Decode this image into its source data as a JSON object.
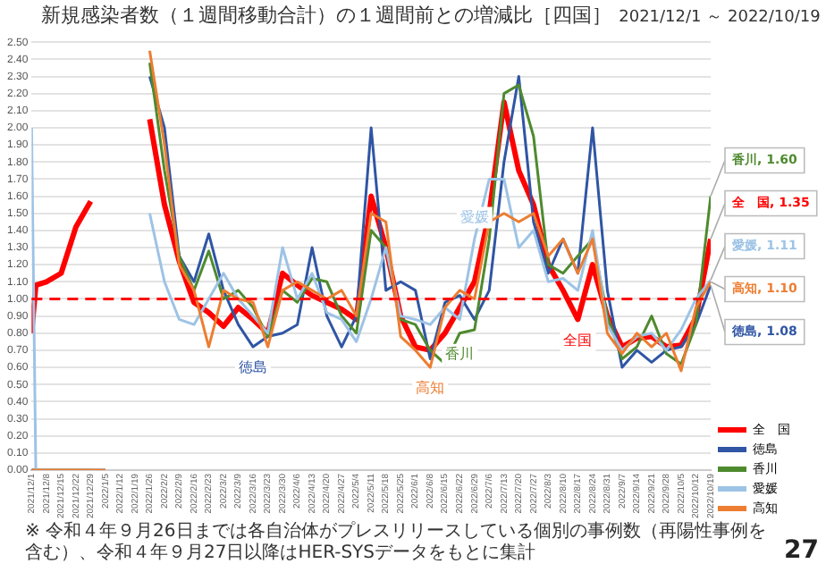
{
  "chart_data": {
    "type": "line",
    "title": "新規感染者数（１週間移動合計）の１週間前との増減比［四国］",
    "subtitle": "2021/12/1 ～ 2022/10/19",
    "x": [
      "2021-12-01",
      "2021-12-03",
      "2021-12-08",
      "2021-12-15",
      "2021-12-22",
      "2021-12-29",
      "2022-01-05",
      "2022-01-12",
      "2022-01-19",
      "2022-01-26",
      "2022-02-02",
      "2022-02-09",
      "2022-02-16",
      "2022-02-23",
      "2022-03-02",
      "2022-03-09",
      "2022-03-16",
      "2022-03-23",
      "2022-03-30",
      "2022-04-06",
      "2022-04-13",
      "2022-04-20",
      "2022-04-27",
      "2022-05-04",
      "2022-05-11",
      "2022-05-18",
      "2022-05-25",
      "2022-06-01",
      "2022-06-08",
      "2022-06-15",
      "2022-06-22",
      "2022-06-29",
      "2022-07-06",
      "2022-07-13",
      "2022-07-20",
      "2022-07-27",
      "2022-08-03",
      "2022-08-10",
      "2022-08-17",
      "2022-08-24",
      "2022-08-31",
      "2022-09-07",
      "2022-09-14",
      "2022-09-21",
      "2022-09-28",
      "2022-10-05",
      "2022-10-12",
      "2022-10-19"
    ],
    "xlim": [
      "2021-12-01",
      "2022-10-19"
    ],
    "xticks": [
      {
        "value": "2021-12-01",
        "label": "2021/12/1"
      },
      {
        "value": "2021-12-08",
        "label": "2021/12/8"
      },
      {
        "value": "2021-12-15",
        "label": "2021/12/15"
      },
      {
        "value": "2021-12-22",
        "label": "2021/12/22"
      },
      {
        "value": "2021-12-29",
        "label": "2021/12/29"
      },
      {
        "value": "2022-01-05",
        "label": "2022/1/5"
      },
      {
        "value": "2022-01-12",
        "label": "2022/1/12"
      },
      {
        "value": "2022-01-19",
        "label": "2022/1/19"
      },
      {
        "value": "2022-01-26",
        "label": "2022/1/26"
      },
      {
        "value": "2022-02-02",
        "label": "2022/2/2"
      },
      {
        "value": "2022-02-09",
        "label": "2022/2/9"
      },
      {
        "value": "2022-02-16",
        "label": "2022/2/16"
      },
      {
        "value": "2022-02-23",
        "label": "2022/2/23"
      },
      {
        "value": "2022-03-02",
        "label": "2022/3/2"
      },
      {
        "value": "2022-03-09",
        "label": "2022/3/9"
      },
      {
        "value": "2022-03-16",
        "label": "2022/3/16"
      },
      {
        "value": "2022-03-23",
        "label": "2022/3/23"
      },
      {
        "value": "2022-03-30",
        "label": "2022/3/30"
      },
      {
        "value": "2022-04-06",
        "label": "2022/4/6"
      },
      {
        "value": "2022-04-13",
        "label": "2022/4/13"
      },
      {
        "value": "2022-04-20",
        "label": "2022/4/20"
      },
      {
        "value": "2022-04-27",
        "label": "2022/4/27"
      },
      {
        "value": "2022-05-04",
        "label": "2022/5/4"
      },
      {
        "value": "2022-05-11",
        "label": "2022/5/11"
      },
      {
        "value": "2022-05-18",
        "label": "2022/5/18"
      },
      {
        "value": "2022-05-25",
        "label": "2022/5/25"
      },
      {
        "value": "2022-06-01",
        "label": "2022/6/1"
      },
      {
        "value": "2022-06-08",
        "label": "2022/6/8"
      },
      {
        "value": "2022-06-15",
        "label": "2022/6/15"
      },
      {
        "value": "2022-06-22",
        "label": "2022/6/22"
      },
      {
        "value": "2022-06-29",
        "label": "2022/6/29"
      },
      {
        "value": "2022-07-06",
        "label": "2022/7/6"
      },
      {
        "value": "2022-07-13",
        "label": "2022/7/13"
      },
      {
        "value": "2022-07-20",
        "label": "2022/7/20"
      },
      {
        "value": "2022-07-27",
        "label": "2022/7/27"
      },
      {
        "value": "2022-08-03",
        "label": "2022/8/3"
      },
      {
        "value": "2022-08-10",
        "label": "2022/8/10"
      },
      {
        "value": "2022-08-17",
        "label": "2022/8/17"
      },
      {
        "value": "2022-08-24",
        "label": "2022/8/24"
      },
      {
        "value": "2022-08-31",
        "label": "2022/8/31"
      },
      {
        "value": "2022-09-07",
        "label": "2022/9/7"
      },
      {
        "value": "2022-09-14",
        "label": "2022/9/14"
      },
      {
        "value": "2022-09-21",
        "label": "2022/9/21"
      },
      {
        "value": "2022-09-28",
        "label": "2022/9/28"
      },
      {
        "value": "2022-10-05",
        "label": "2022/10/5"
      },
      {
        "value": "2022-10-12",
        "label": "2022/10/12"
      },
      {
        "value": "2022-10-19",
        "label": "2022/10/19"
      }
    ],
    "ylim": [
      0,
      2.5
    ],
    "yticks": [
      {
        "value": 0,
        "label": "0.00"
      },
      {
        "value": 0.1,
        "label": "0.10"
      },
      {
        "value": 0.2,
        "label": "0.20"
      },
      {
        "value": 0.3,
        "label": "0.30"
      },
      {
        "value": 0.4,
        "label": "0.40"
      },
      {
        "value": 0.5,
        "label": "0.50"
      },
      {
        "value": 0.6,
        "label": "0.60"
      },
      {
        "value": 0.7,
        "label": "0.70"
      },
      {
        "value": 0.8,
        "label": "0.80"
      },
      {
        "value": 0.9,
        "label": "0.90"
      },
      {
        "value": 1,
        "label": "1.00"
      },
      {
        "value": 1.1,
        "label": "1.10"
      },
      {
        "value": 1.2,
        "label": "1.20"
      },
      {
        "value": 1.3,
        "label": "1.30"
      },
      {
        "value": 1.4,
        "label": "1.40"
      },
      {
        "value": 1.5,
        "label": "1.50"
      },
      {
        "value": 1.6,
        "label": "1.60"
      },
      {
        "value": 1.7,
        "label": "1.70"
      },
      {
        "value": 1.8,
        "label": "1.80"
      },
      {
        "value": 1.9,
        "label": "1.90"
      },
      {
        "value": 2,
        "label": "2.00"
      },
      {
        "value": 2.1,
        "label": "2.10"
      },
      {
        "value": 2.2,
        "label": "2.20"
      },
      {
        "value": 2.3,
        "label": "2.30"
      },
      {
        "value": 2.4,
        "label": "2.40"
      },
      {
        "value": 2.5,
        "label": "2.50"
      }
    ],
    "grid": "y",
    "legend": "bottom right",
    "ref_lines": [
      {
        "axis": "y",
        "value": 1,
        "color": "#ff0000",
        "line_style": "dashed"
      }
    ],
    "series": [
      {
        "name": "全　国",
        "color": "#ff0000",
        "values": [
          0.8,
          1.08,
          1.1,
          1.15,
          1.42,
          1.57,
          null,
          null,
          null,
          2.05,
          1.55,
          1.22,
          0.98,
          0.92,
          0.84,
          0.95,
          0.88,
          0.8,
          1.15,
          1.08,
          1.02,
          0.98,
          0.94,
          0.88,
          1.6,
          1.3,
          0.9,
          0.72,
          0.7,
          0.8,
          0.95,
          1.1,
          1.5,
          2.15,
          1.75,
          1.55,
          1.2,
          1.05,
          0.88,
          1.2,
          0.9,
          0.72,
          0.77,
          0.78,
          0.72,
          0.73,
          0.89,
          1.35
        ],
        "value_labels": [
          null,
          null,
          null,
          null,
          null,
          null,
          null,
          null,
          null,
          null,
          null,
          null,
          null,
          null,
          null,
          null,
          null,
          null,
          null,
          null,
          null,
          null,
          null,
          null,
          null,
          null,
          null,
          null,
          null,
          null,
          null,
          null,
          null,
          null,
          null,
          null,
          null,
          null,
          null,
          null,
          null,
          null,
          null,
          null,
          null,
          null,
          null,
          "全　国, 1.35"
        ]
      },
      {
        "name": "徳島",
        "color": "#2f55a4",
        "values": [
          0,
          0,
          0,
          0,
          0,
          0,
          0,
          null,
          null,
          2.3,
          2.0,
          1.25,
          1.1,
          1.38,
          1.05,
          0.85,
          0.72,
          0.78,
          0.8,
          0.85,
          1.3,
          0.9,
          0.72,
          0.9,
          2.0,
          1.05,
          1.1,
          1.05,
          0.65,
          0.98,
          1.02,
          0.88,
          1.05,
          1.8,
          2.3,
          1.45,
          1.15,
          1.35,
          1.15,
          2.0,
          1.05,
          0.6,
          0.7,
          0.63,
          0.7,
          0.72,
          0.85,
          1.08
        ],
        "value_labels": [
          null,
          null,
          null,
          null,
          null,
          null,
          null,
          null,
          null,
          null,
          null,
          null,
          null,
          null,
          null,
          null,
          null,
          null,
          null,
          null,
          null,
          null,
          null,
          null,
          null,
          null,
          null,
          null,
          null,
          null,
          null,
          null,
          null,
          null,
          null,
          null,
          null,
          null,
          null,
          null,
          null,
          null,
          null,
          null,
          null,
          null,
          null,
          "徳島, 1.08"
        ]
      },
      {
        "name": "香川",
        "color": "#4e8a2e",
        "values": [
          0,
          0,
          0,
          0,
          0,
          0,
          null,
          null,
          null,
          2.38,
          1.75,
          1.25,
          1.05,
          1.28,
          1.0,
          1.05,
          0.95,
          0.78,
          1.05,
          0.98,
          1.12,
          1.1,
          0.9,
          0.8,
          1.4,
          1.3,
          0.88,
          0.85,
          0.7,
          0.62,
          0.8,
          0.82,
          1.35,
          2.2,
          2.25,
          1.95,
          1.2,
          1.15,
          1.25,
          1.35,
          0.9,
          0.65,
          0.72,
          0.9,
          0.68,
          0.62,
          0.85,
          1.6
        ],
        "value_labels": [
          null,
          null,
          null,
          null,
          null,
          null,
          null,
          null,
          null,
          null,
          null,
          null,
          null,
          null,
          null,
          null,
          null,
          null,
          null,
          null,
          null,
          null,
          null,
          null,
          null,
          null,
          null,
          null,
          null,
          null,
          null,
          null,
          null,
          null,
          null,
          null,
          null,
          null,
          null,
          null,
          null,
          null,
          null,
          null,
          null,
          null,
          null,
          "香川, 1.60"
        ]
      },
      {
        "name": "愛媛",
        "color": "#9dc3e6",
        "values": [
          2.0,
          0,
          0,
          0,
          0,
          0,
          0,
          null,
          null,
          1.5,
          1.1,
          0.88,
          0.85,
          1.0,
          1.15,
          1.0,
          0.9,
          0.8,
          1.3,
          1.0,
          1.15,
          0.92,
          0.88,
          0.75,
          1.0,
          1.3,
          0.9,
          0.88,
          0.85,
          0.95,
          0.88,
          1.35,
          1.7,
          1.7,
          1.3,
          1.4,
          1.1,
          1.12,
          1.05,
          1.4,
          0.85,
          0.7,
          0.78,
          0.8,
          0.7,
          0.82,
          1.0,
          1.11
        ],
        "value_labels": [
          null,
          null,
          null,
          null,
          null,
          null,
          null,
          null,
          null,
          null,
          null,
          null,
          null,
          null,
          null,
          null,
          null,
          null,
          null,
          null,
          null,
          null,
          null,
          null,
          null,
          null,
          null,
          null,
          null,
          null,
          null,
          null,
          null,
          null,
          null,
          null,
          null,
          null,
          null,
          null,
          null,
          null,
          null,
          null,
          null,
          null,
          null,
          "愛媛, 1.11"
        ]
      },
      {
        "name": "高知",
        "color": "#ed7d31",
        "values": [
          0,
          0,
          0,
          0,
          0,
          0,
          0,
          null,
          null,
          2.45,
          1.9,
          1.2,
          1.05,
          0.72,
          1.05,
          1.0,
          0.98,
          0.72,
          1.05,
          1.1,
          1.05,
          1.0,
          1.05,
          0.9,
          1.5,
          1.45,
          0.78,
          0.7,
          0.6,
          0.95,
          1.05,
          1.0,
          1.45,
          1.5,
          1.45,
          1.5,
          1.25,
          1.35,
          1.15,
          1.35,
          0.8,
          0.68,
          0.8,
          0.72,
          0.8,
          0.58,
          0.95,
          1.1
        ],
        "value_labels": [
          null,
          null,
          null,
          null,
          null,
          null,
          null,
          null,
          null,
          null,
          null,
          null,
          null,
          null,
          null,
          null,
          null,
          null,
          null,
          null,
          null,
          null,
          null,
          null,
          null,
          null,
          null,
          null,
          null,
          null,
          null,
          null,
          null,
          null,
          null,
          null,
          null,
          null,
          null,
          null,
          null,
          null,
          null,
          null,
          null,
          null,
          null,
          "高知, 1.10"
        ]
      }
    ],
    "annotations": [
      {
        "text": "徳島",
        "x": "2022-03-16",
        "y": 0.72
      },
      {
        "text": "高知",
        "x": "2022-06-08",
        "y": 0.6
      },
      {
        "text": "愛媛",
        "x": "2022-06-29",
        "y": 1.35
      },
      {
        "text": "香川",
        "x": "2022-06-22",
        "y": 0.8
      },
      {
        "text": "全国",
        "x": "2022-08-17",
        "y": 0.88
      },
      "※ 令和４年９月26日までは各自治体がプレスリリースしている個別の事例数（再陽性事例を含む）、令和４年９月27日以降はHER-SYSデータをもとに集計",
      "27"
    ]
  }
}
